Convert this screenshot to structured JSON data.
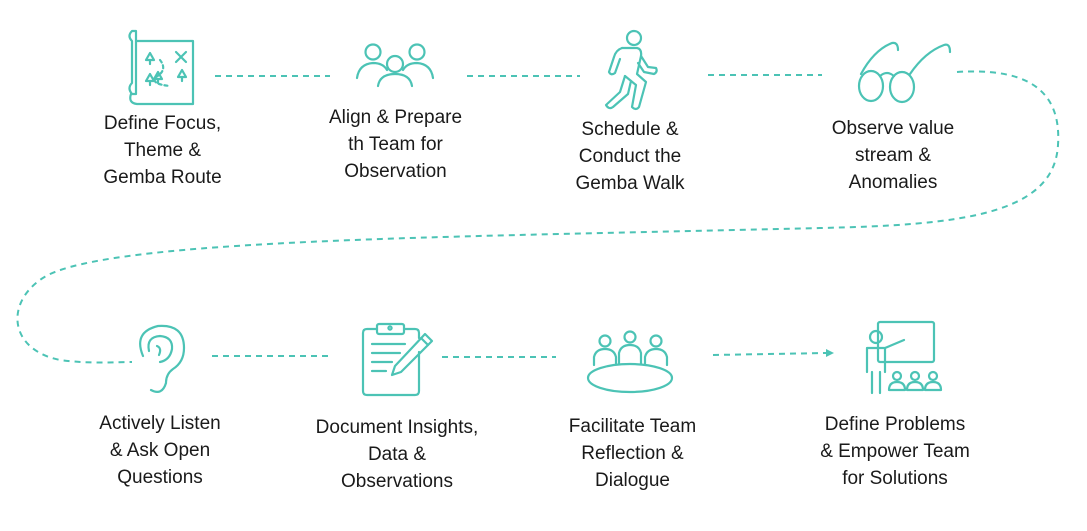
{
  "colors": {
    "accent": "#4cc3b5",
    "text": "#1a1a1a",
    "background": "#ffffff"
  },
  "steps": [
    {
      "icon": "map-icon",
      "lines": [
        "Define Focus,",
        "Theme &",
        "Gemba Route"
      ]
    },
    {
      "icon": "team-icon",
      "lines": [
        "Align & Prepare",
        "th Team for",
        "Observation"
      ]
    },
    {
      "icon": "walking-person-icon",
      "lines": [
        "Schedule &",
        "Conduct the",
        "Gemba Walk"
      ]
    },
    {
      "icon": "glasses-icon",
      "lines": [
        "Observe value",
        "stream &",
        "Anomalies"
      ]
    },
    {
      "icon": "ear-icon",
      "lines": [
        "Actively Listen",
        "& Ask Open",
        "Questions"
      ]
    },
    {
      "icon": "clipboard-pen-icon",
      "lines": [
        "Document Insights,",
        "Data &",
        "Observations"
      ]
    },
    {
      "icon": "meeting-table-icon",
      "lines": [
        "Facilitate Team",
        "Reflection &",
        "Dialogue"
      ]
    },
    {
      "icon": "presentation-board-icon",
      "lines": [
        "Define Problems",
        "& Empower Team",
        "for Solutions"
      ]
    }
  ]
}
